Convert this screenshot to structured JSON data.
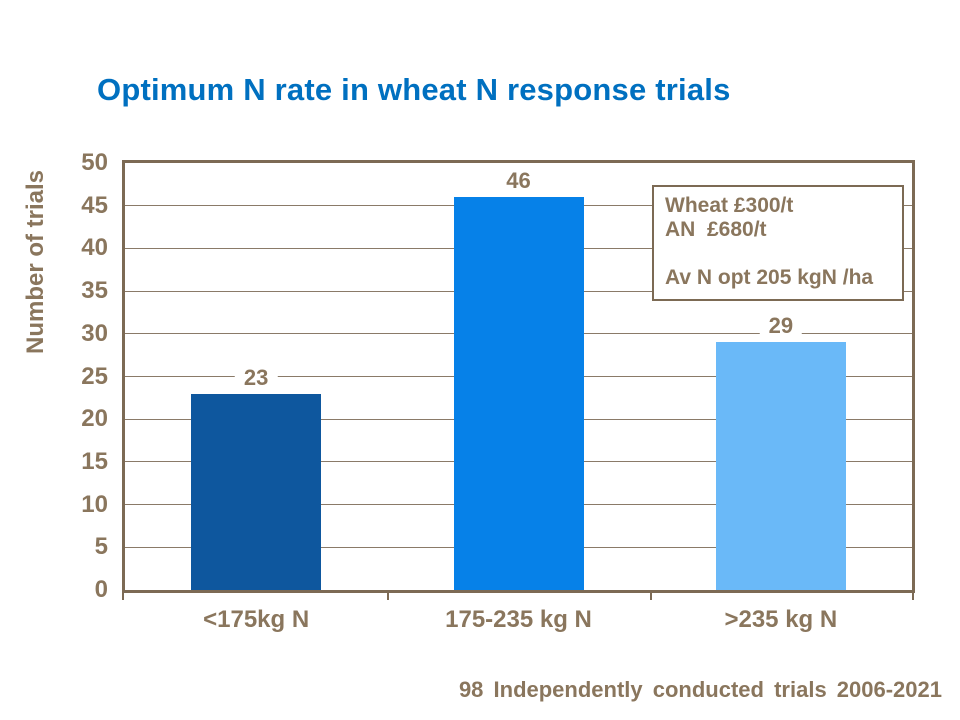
{
  "title": "Optimum N rate in wheat N response trials",
  "footer": "98 Independently conducted trials 2006-2021",
  "annotation": {
    "lines": [
      "Wheat £300/t",
      "AN  £680/t",
      "",
      "Av N opt 205 kgN /ha"
    ]
  },
  "colors": {
    "title": "#0070C0",
    "text": "#8A765D",
    "axis": "#7C6A54",
    "gridline": "#8A7A68",
    "background": "#FFFFFF"
  },
  "chart_data": {
    "type": "bar",
    "title": "Optimum N rate in wheat N response trials",
    "categories": [
      "<175kg N",
      "175-235 kg N",
      ">235 kg N"
    ],
    "values": [
      23,
      46,
      29
    ],
    "bar_colors": [
      "#0E579E",
      "#0681E8",
      "#6AB9F8"
    ],
    "value_labels": [
      "23",
      "46",
      "29"
    ],
    "xlabel": "",
    "ylabel": "Number of trials",
    "ylim": [
      0,
      50
    ],
    "ytick_step": 5,
    "yticks": [
      0,
      5,
      10,
      15,
      20,
      25,
      30,
      35,
      40,
      45,
      50
    ],
    "grid": "horizontal",
    "legend": "none",
    "annotation_text": [
      "Wheat £300/t",
      "AN  £680/t",
      "Av N opt 205 kgN /ha"
    ]
  }
}
